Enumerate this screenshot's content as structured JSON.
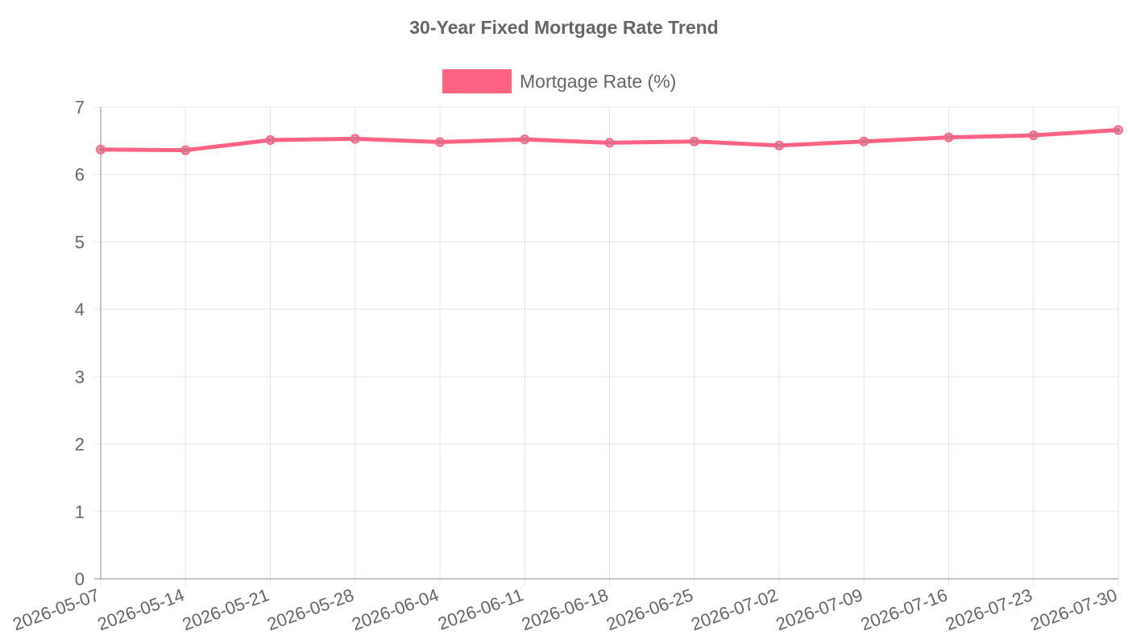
{
  "chart_data": {
    "type": "line",
    "title": "30-Year Fixed Mortgage Rate Trend",
    "xlabel": "",
    "ylabel": "",
    "ylim": [
      0,
      7
    ],
    "y_ticks": [
      "0",
      "1",
      "2",
      "3",
      "4",
      "5",
      "6",
      "7"
    ],
    "categories": [
      "2026-05-07",
      "2026-05-14",
      "2026-05-21",
      "2026-05-28",
      "2026-06-04",
      "2026-06-11",
      "2026-06-18",
      "2026-06-25",
      "2026-07-02",
      "2026-07-09",
      "2026-07-16",
      "2026-07-23",
      "2026-07-30"
    ],
    "series": [
      {
        "name": "Mortgage Rate (%)",
        "values": [
          6.37,
          6.36,
          6.51,
          6.53,
          6.48,
          6.52,
          6.47,
          6.49,
          6.43,
          6.49,
          6.55,
          6.58,
          6.66
        ],
        "color": "#ff6384"
      }
    ],
    "grid": true,
    "legend_position": "top-center"
  }
}
